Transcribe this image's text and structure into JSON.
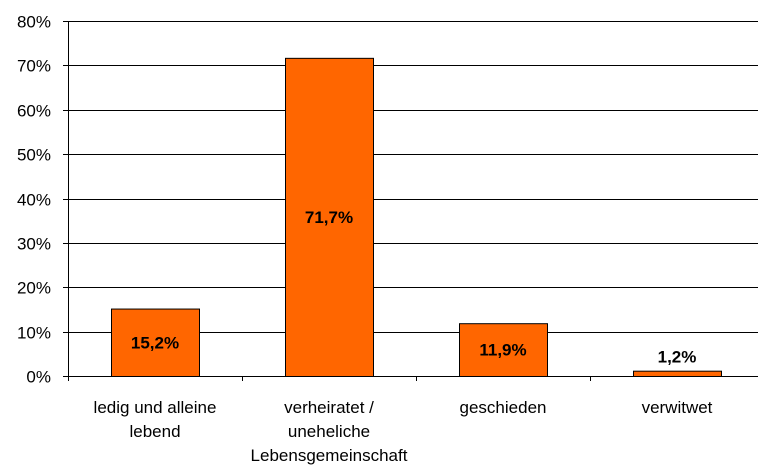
{
  "chart_data": {
    "type": "bar",
    "categories": [
      [
        "ledig und alleine",
        "lebend"
      ],
      [
        "verheiratet /",
        "uneheliche",
        "Lebensgemeinschaft"
      ],
      [
        "geschieden"
      ],
      [
        "verwitwet"
      ]
    ],
    "values": [
      15.2,
      71.7,
      11.9,
      1.2
    ],
    "data_labels": [
      "15,2%",
      "71,7%",
      "11,9%",
      "1,2%"
    ],
    "yticks": [
      0,
      10,
      20,
      30,
      40,
      50,
      60,
      70,
      80
    ],
    "ytick_labels": [
      "0%",
      "10%",
      "20%",
      "30%",
      "40%",
      "50%",
      "60%",
      "70%",
      "80%"
    ],
    "ylim": [
      0,
      80
    ],
    "grid": true,
    "legend": "none",
    "bar_color": "#FF6600",
    "title": "",
    "xlabel": "",
    "ylabel": ""
  }
}
